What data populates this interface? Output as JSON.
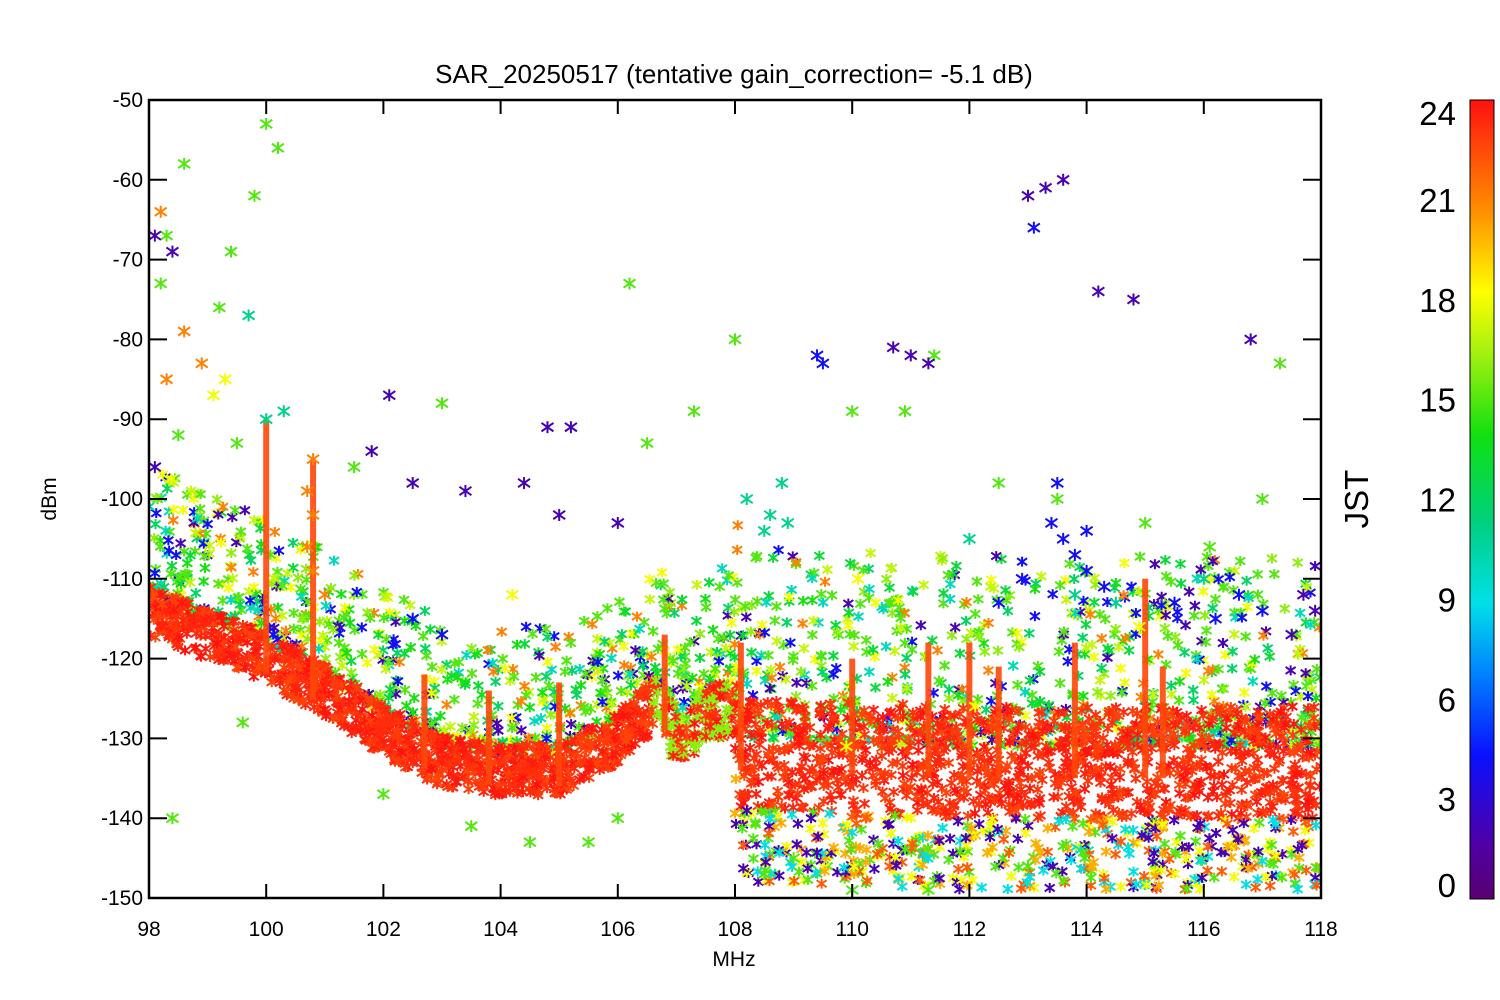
{
  "chart_data": {
    "type": "scatter",
    "title": "SAR_20250517 (tentative gain_correction= -5.1 dB)",
    "xlabel": "MHz",
    "ylabel": "dBm",
    "xlim": [
      98,
      118
    ],
    "ylim": [
      -150,
      -50
    ],
    "x_ticks": [
      "98",
      "100",
      "102",
      "104",
      "106",
      "108",
      "110",
      "112",
      "114",
      "116",
      "118"
    ],
    "y_ticks": [
      "-50",
      "-60",
      "-70",
      "-80",
      "-90",
      "-100",
      "-110",
      "-120",
      "-130",
      "-140",
      "-150"
    ],
    "grid": false,
    "marker": "asterisk",
    "colorbar": {
      "label": "JST",
      "range": [
        0,
        24
      ],
      "ticks": [
        "0",
        "3",
        "6",
        "9",
        "12",
        "15",
        "18",
        "21",
        "24"
      ],
      "colormap": "rainbow (purple-blue-cyan-green-yellow-red)"
    },
    "series": [
      {
        "description_key": "floor",
        "hour": 23,
        "floor_profile": [
          [
            98,
            -114
          ],
          [
            99,
            -117
          ],
          [
            100,
            -120
          ],
          [
            101,
            -124
          ],
          [
            102,
            -129
          ],
          [
            103,
            -133
          ],
          [
            104,
            -134
          ],
          [
            105,
            -134
          ],
          [
            106,
            -130
          ],
          [
            106.7,
            -125
          ],
          [
            107,
            -131
          ],
          [
            107.5,
            -127
          ],
          [
            108,
            -126
          ],
          [
            108.1,
            -132
          ],
          [
            112,
            -133
          ],
          [
            118,
            -133
          ]
        ]
      },
      {
        "hour": 15,
        "points": [
          [
            98.2,
            -73
          ],
          [
            98.3,
            -67
          ],
          [
            98.6,
            -58
          ],
          [
            99.2,
            -76
          ],
          [
            99.4,
            -69
          ],
          [
            99.8,
            -62
          ],
          [
            100.0,
            -53
          ],
          [
            100.2,
            -56
          ],
          [
            99.5,
            -93
          ],
          [
            98.5,
            -92
          ],
          [
            101.5,
            -96
          ],
          [
            103.0,
            -88
          ],
          [
            106.2,
            -73
          ],
          [
            106.5,
            -93
          ],
          [
            108.0,
            -80
          ],
          [
            107.3,
            -89
          ],
          [
            110.0,
            -89
          ],
          [
            110.9,
            -89
          ],
          [
            111.4,
            -82
          ],
          [
            112.5,
            -98
          ],
          [
            113.5,
            -100
          ],
          [
            115.0,
            -103
          ],
          [
            116.1,
            -106
          ],
          [
            117.0,
            -100
          ],
          [
            117.3,
            -83
          ],
          [
            98.4,
            -140
          ],
          [
            99.6,
            -128
          ],
          [
            102.0,
            -137
          ],
          [
            103.5,
            -141
          ],
          [
            104.5,
            -143
          ],
          [
            105.5,
            -143
          ],
          [
            106.0,
            -140
          ],
          [
            108.5,
            -147
          ],
          [
            109.0,
            -145
          ],
          [
            110.0,
            -149
          ],
          [
            111.3,
            -149
          ],
          [
            113.0,
            -146
          ],
          [
            115.5,
            -151
          ],
          [
            117.0,
            -151
          ]
        ]
      },
      {
        "hour": 11,
        "points": [
          [
            99.7,
            -77
          ],
          [
            100.0,
            -90
          ],
          [
            100.3,
            -89
          ],
          [
            108.2,
            -100
          ],
          [
            108.6,
            -102
          ],
          [
            108.8,
            -98
          ],
          [
            108.5,
            -104
          ],
          [
            108.9,
            -103
          ],
          [
            112.0,
            -105
          ],
          [
            113.8,
            -112
          ],
          [
            114.5,
            -113
          ],
          [
            116.0,
            -110
          ]
        ]
      },
      {
        "hour": 2,
        "points": [
          [
            98.1,
            -67
          ],
          [
            98.4,
            -69
          ],
          [
            98.1,
            -96
          ],
          [
            102.1,
            -87
          ],
          [
            101.8,
            -94
          ],
          [
            102.5,
            -98
          ],
          [
            103.4,
            -99
          ],
          [
            104.4,
            -98
          ],
          [
            104.8,
            -91
          ],
          [
            105.2,
            -91
          ],
          [
            105.0,
            -102
          ],
          [
            106.0,
            -103
          ],
          [
            110.7,
            -81
          ],
          [
            111.0,
            -82
          ],
          [
            111.3,
            -83
          ],
          [
            113.0,
            -62
          ],
          [
            113.3,
            -61
          ],
          [
            113.6,
            -60
          ],
          [
            114.2,
            -74
          ],
          [
            114.8,
            -75
          ],
          [
            116.8,
            -80
          ],
          [
            117.7,
            -112
          ],
          [
            117.9,
            -114
          ],
          [
            117.5,
            -117
          ]
        ]
      },
      {
        "hour": 4,
        "points": [
          [
            109.4,
            -82
          ],
          [
            109.5,
            -83
          ],
          [
            113.1,
            -66
          ],
          [
            112.5,
            -113
          ],
          [
            112.9,
            -110
          ],
          [
            113.4,
            -103
          ],
          [
            113.6,
            -105
          ],
          [
            113.8,
            -107
          ],
          [
            114.0,
            -109
          ],
          [
            114.3,
            -111
          ],
          [
            114.0,
            -104
          ],
          [
            113.5,
            -98
          ],
          [
            115.5,
            -113
          ],
          [
            116.2,
            -115
          ],
          [
            116.6,
            -112
          ],
          [
            117.0,
            -114
          ],
          [
            102.5,
            -115
          ],
          [
            103.0,
            -117
          ]
        ]
      },
      {
        "hour": 21,
        "points": [
          [
            98.2,
            -64
          ],
          [
            98.6,
            -79
          ],
          [
            98.9,
            -83
          ],
          [
            98.3,
            -85
          ],
          [
            100.8,
            -95
          ],
          [
            100.7,
            -99
          ],
          [
            100.8,
            -102
          ],
          [
            100.7,
            -106
          ],
          [
            100.8,
            -109
          ],
          [
            101.0,
            -112
          ]
        ]
      },
      {
        "hour": 18,
        "points": [
          [
            99.3,
            -85
          ],
          [
            99.1,
            -87
          ],
          [
            104.2,
            -112
          ],
          [
            110.1,
            -110
          ],
          [
            112.1,
            -126
          ],
          [
            114.9,
            -116
          ],
          [
            109.9,
            -131
          ]
        ]
      }
    ]
  }
}
